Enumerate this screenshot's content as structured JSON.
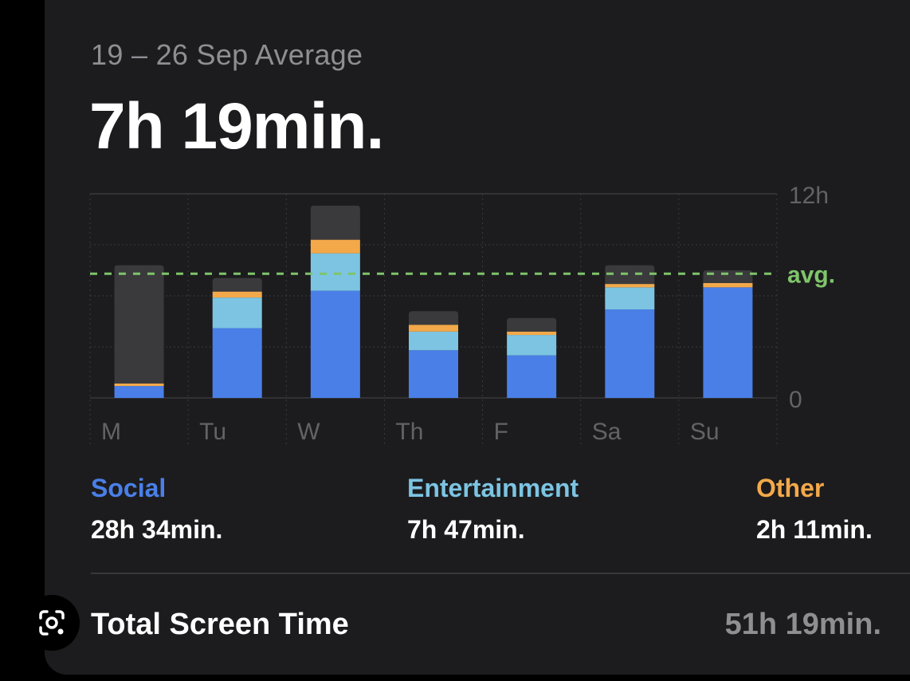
{
  "header": {
    "period": "19 – 26 Sep Average",
    "average": "7h 19min."
  },
  "chart_data": {
    "type": "bar",
    "stacked": true,
    "categories": [
      "M",
      "Tu",
      "W",
      "Th",
      "F",
      "Sa",
      "Su"
    ],
    "series": [
      {
        "name": "Social",
        "color": "#4a7fe8",
        "values": [
          0.7,
          4.1,
          6.3,
          2.8,
          2.5,
          5.2,
          6.5
        ]
      },
      {
        "name": "Entertainment",
        "color": "#7cc4e2",
        "values": [
          0,
          1.8,
          2.2,
          1.1,
          1.2,
          1.3,
          0
        ]
      },
      {
        "name": "Other",
        "color": "#f3a94a",
        "values": [
          0.15,
          0.35,
          0.8,
          0.4,
          0.2,
          0.2,
          0.25
        ]
      },
      {
        "color": "#3a3a3c",
        "values": [
          6.95,
          0.8,
          2.0,
          0.8,
          0.8,
          1.1,
          0.75
        ]
      }
    ],
    "ylim": [
      0,
      12
    ],
    "ytick_labels": [
      "12h",
      "0"
    ],
    "avg_value": 7.3,
    "avg_label": "avg.",
    "colors": {
      "avg_line": "#7fc46a",
      "grid": "#3a3a3c",
      "axis_text": "#636366"
    }
  },
  "legend": [
    {
      "label": "Social",
      "value": "28h 34min.",
      "color": "#4a7fe8"
    },
    {
      "label": "Entertainment",
      "value": "7h 47min.",
      "color": "#7cc4e2"
    },
    {
      "label": "Other",
      "value": "2h 11min.",
      "color": "#f3a94a"
    }
  ],
  "total": {
    "label": "Total Screen Time",
    "value": "51h 19min."
  },
  "overlay": {
    "icon": "lens-icon"
  }
}
